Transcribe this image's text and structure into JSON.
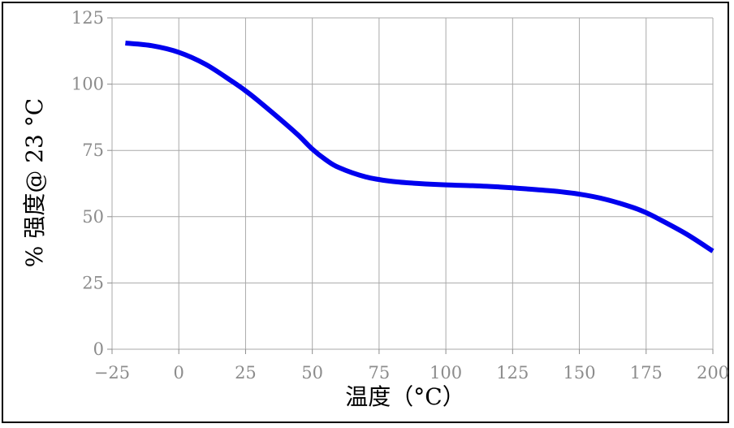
{
  "chart_data": {
    "type": "line",
    "xlabel": "温度（°C）",
    "ylabel": "% 强度@ 23 °C",
    "xlim": [
      -25,
      200
    ],
    "ylim": [
      0,
      125
    ],
    "xticks": [
      -25,
      0,
      25,
      50,
      75,
      100,
      125,
      150,
      175,
      200
    ],
    "yticks": [
      0,
      25,
      50,
      75,
      100,
      125
    ],
    "xtick_labels": [
      "−25",
      "0",
      "25",
      "50",
      "75",
      "100",
      "125",
      "150",
      "175",
      "200"
    ],
    "ytick_labels": [
      "0",
      "25",
      "50",
      "75",
      "100",
      "125"
    ],
    "grid": true,
    "series": [
      {
        "color": "#0000ee",
        "x": [
          -20,
          -10,
          0,
          10,
          20,
          25,
          30,
          40,
          45,
          50,
          55,
          60,
          70,
          80,
          90,
          100,
          110,
          120,
          130,
          140,
          150,
          160,
          170,
          175,
          180,
          190,
          200
        ],
        "y": [
          115.5,
          114.5,
          112,
          107.5,
          101,
          97.5,
          93.5,
          85,
          80.5,
          75.5,
          71.5,
          68.5,
          65,
          63.3,
          62.5,
          62,
          61.7,
          61.2,
          60.5,
          59.7,
          58.5,
          56.5,
          53.5,
          51.5,
          49,
          43.5,
          37
        ]
      }
    ]
  }
}
